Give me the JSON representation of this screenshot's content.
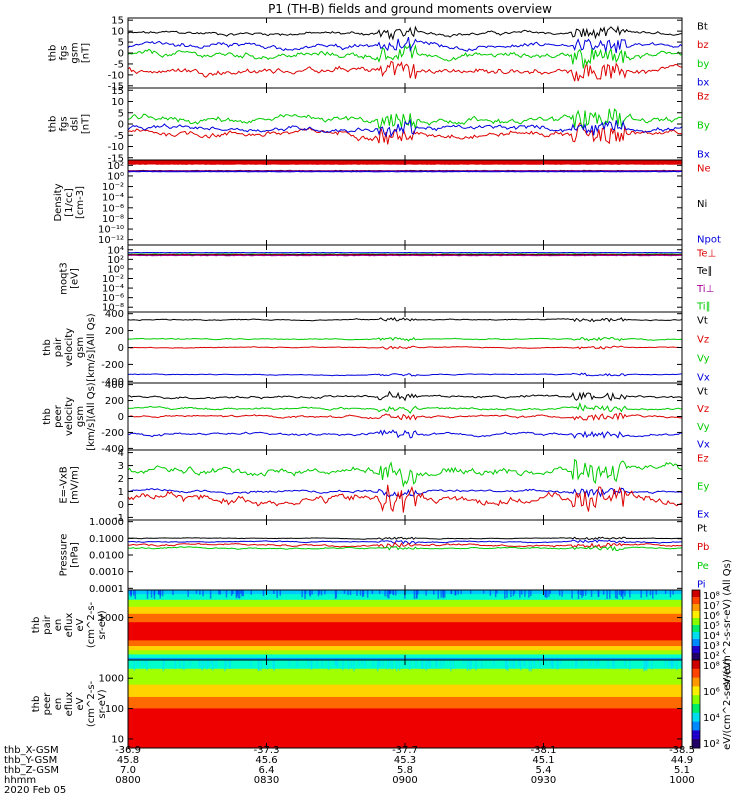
{
  "title": "P1 (TH-B) fields and ground moments overview",
  "panels": [
    {
      "ylabel": [
        "thb",
        "fgs",
        "gsm",
        "[nT]"
      ],
      "ticks": [
        {
          "v": 15,
          "l": "15"
        },
        {
          "v": 10,
          "l": "10"
        },
        {
          "v": 5,
          "l": "5"
        },
        {
          "v": 0,
          "l": "0"
        },
        {
          "v": -5,
          "l": "-5"
        },
        {
          "v": -10,
          "l": "-10"
        },
        {
          "v": -15,
          "l": "-15"
        }
      ],
      "ylim": [
        -16,
        16
      ],
      "legend": [
        {
          "n": "Bt",
          "c": "#000000"
        },
        {
          "n": "bz",
          "c": "#dd0000"
        },
        {
          "n": "by",
          "c": "#00cc00"
        },
        {
          "n": "bx",
          "c": "#0000dd"
        }
      ]
    },
    {
      "ylabel": [
        "thb",
        "fgs",
        "dsl",
        "[nT]"
      ],
      "ticks": [
        {
          "v": 15,
          "l": "15"
        },
        {
          "v": 10,
          "l": "10"
        },
        {
          "v": 5,
          "l": "5"
        },
        {
          "v": 0,
          "l": "0"
        },
        {
          "v": -5,
          "l": "-5"
        },
        {
          "v": -10,
          "l": "-10"
        },
        {
          "v": -15,
          "l": "-15"
        }
      ],
      "ylim": [
        -16,
        16
      ],
      "legend": [
        {
          "n": "Bz",
          "c": "#dd0000"
        },
        {
          "n": "By",
          "c": "#00cc00"
        },
        {
          "n": "Bx",
          "c": "#0000dd"
        }
      ]
    },
    {
      "ylabel": [
        "Density",
        "[1/cc]",
        "[cm-3]"
      ],
      "ticks": [
        {
          "v": 2,
          "l": "10²"
        },
        {
          "v": 0,
          "l": "10⁰"
        },
        {
          "v": -2,
          "l": "10⁻²"
        },
        {
          "v": -4,
          "l": "10⁻⁴"
        },
        {
          "v": -6,
          "l": "10⁻⁶"
        },
        {
          "v": -8,
          "l": "10⁻⁸"
        },
        {
          "v": -10,
          "l": "10⁻¹⁰"
        },
        {
          "v": -12,
          "l": "10⁻¹²"
        }
      ],
      "ylim": [
        -13,
        3
      ],
      "legend": [
        {
          "n": "Ne",
          "c": "#dd0000"
        },
        {
          "n": "Ni",
          "c": "#000000"
        },
        {
          "n": "Npot",
          "c": "#0000dd"
        }
      ]
    },
    {
      "ylabel": [
        "moqt3",
        "[eV]"
      ],
      "ticks": [
        {
          "v": 4,
          "l": "10⁴"
        },
        {
          "v": 2,
          "l": "10²"
        },
        {
          "v": 0,
          "l": "10⁰"
        },
        {
          "v": -2,
          "l": "10⁻²"
        },
        {
          "v": -4,
          "l": "10⁻⁴"
        },
        {
          "v": -6,
          "l": "10⁻⁶"
        },
        {
          "v": -8,
          "l": "10⁻⁸"
        }
      ],
      "ylim": [
        -9,
        5
      ],
      "legend": [
        {
          "n": "Te⊥",
          "c": "#dd0000"
        },
        {
          "n": "Te∥",
          "c": "#000000"
        },
        {
          "n": "Ti⊥",
          "c": "#aa0099"
        },
        {
          "n": "Ti∥",
          "c": "#00cc00"
        }
      ]
    },
    {
      "ylabel": [
        "thb",
        "pair",
        "velocity",
        "gsm",
        "[km/s](All Qs)"
      ],
      "ticks": [
        {
          "v": 400,
          "l": "400"
        },
        {
          "v": 200,
          "l": "200"
        },
        {
          "v": 0,
          "l": "0"
        },
        {
          "v": -200,
          "l": "-200"
        },
        {
          "v": -400,
          "l": "-400"
        }
      ],
      "ylim": [
        -420,
        420
      ],
      "legend": [
        {
          "n": "Vt",
          "c": "#000000"
        },
        {
          "n": "Vz",
          "c": "#dd0000"
        },
        {
          "n": "Vy",
          "c": "#00cc00"
        },
        {
          "n": "Vx",
          "c": "#0000dd"
        }
      ]
    },
    {
      "ylabel": [
        "thb",
        "peer",
        "velocity",
        "gsm",
        "[km/s](All Qs)"
      ],
      "ticks": [
        {
          "v": 400,
          "l": "400"
        },
        {
          "v": 200,
          "l": "200"
        },
        {
          "v": 0,
          "l": "0"
        },
        {
          "v": -200,
          "l": "-200"
        },
        {
          "v": -400,
          "l": "-400"
        }
      ],
      "ylim": [
        -420,
        420
      ],
      "legend": [
        {
          "n": "Vt",
          "c": "#000000"
        },
        {
          "n": "Vz",
          "c": "#dd0000"
        },
        {
          "n": "Vy",
          "c": "#00cc00"
        },
        {
          "n": "Vx",
          "c": "#0000dd"
        }
      ]
    },
    {
      "ylabel": [
        "E=-VxB",
        "[mV/m]"
      ],
      "ticks": [
        {
          "v": 4,
          "l": "4"
        },
        {
          "v": 3,
          "l": "3"
        },
        {
          "v": 2,
          "l": "2"
        },
        {
          "v": 1,
          "l": "1"
        },
        {
          "v": 0,
          "l": "0"
        },
        {
          "v": -1,
          "l": "-1"
        }
      ],
      "ylim": [
        -1.2,
        4.2
      ],
      "legend": [
        {
          "n": "Ez",
          "c": "#dd0000"
        },
        {
          "n": "Ey",
          "c": "#00cc00"
        },
        {
          "n": "Ex",
          "c": "#0000dd"
        }
      ]
    },
    {
      "ylabel": [
        "Pressure",
        "[nPa]"
      ],
      "ticks": [
        {
          "v": 0,
          "l": "1.0000"
        },
        {
          "v": -1,
          "l": "0.1000"
        },
        {
          "v": -2,
          "l": "0.0100"
        },
        {
          "v": -3,
          "l": "0.0010"
        },
        {
          "v": -4,
          "l": "0.0001"
        }
      ],
      "ylim": [
        -4.1,
        0.1
      ],
      "legend": [
        {
          "n": "Pt",
          "c": "#000000"
        },
        {
          "n": "Pb",
          "c": "#dd0000"
        },
        {
          "n": "Pe",
          "c": "#00cc00"
        },
        {
          "n": "Pi",
          "c": "#0000dd"
        }
      ]
    },
    {
      "ylabel": [
        "thb",
        "pair",
        "en",
        "eflux",
        "eV",
        "(cm^2-s-",
        "sr-eV)"
      ],
      "ticks": [
        {
          "v": 3,
          "l": "1000"
        }
      ],
      "ylim": [
        1,
        4.3
      ],
      "cbar": {
        "ticks": [
          "10⁸",
          "10⁷",
          "10⁶",
          "10⁵",
          "10⁴",
          "10³",
          "10²"
        ],
        "label": "eV/(cm^2-s-sr-eV) (All Qs)"
      }
    },
    {
      "ylabel": [
        "thb",
        "peer",
        "en",
        "eflux",
        "eV",
        "(cm^2-s-",
        "sr-eV)"
      ],
      "ticks": [
        {
          "v": 3,
          "l": "1000"
        },
        {
          "v": 2,
          "l": "100"
        },
        {
          "v": 1,
          "l": "10"
        }
      ],
      "ylim": [
        0.7,
        3.6
      ],
      "cbar": {
        "ticks": [
          "10⁸",
          "10⁶",
          "10⁴",
          "10²"
        ],
        "label": "eV/(cm^2-s-sr-eV)"
      }
    }
  ],
  "xaxis": {
    "labels": [
      "thb_X-GSM",
      "thb_Y-GSM",
      "thb_Z-GSM",
      "hhmm",
      "2020 Feb 05"
    ],
    "ticks": [
      {
        "x": "-36.9",
        "y": "45.8",
        "z": "7.0",
        "t": "0800"
      },
      {
        "x": "-37.3",
        "y": "45.6",
        "z": "6.4",
        "t": "0830"
      },
      {
        "x": "-37.7",
        "y": "45.3",
        "z": "5.8",
        "t": "0900"
      },
      {
        "x": "-38.1",
        "y": "45.1",
        "z": "5.4",
        "t": "0930"
      },
      {
        "x": "-38.5",
        "y": "44.9",
        "z": "5.1",
        "t": "1000"
      }
    ]
  },
  "chart_data": {
    "type": "line",
    "title": "P1 (TH-B) fields and ground moments overview",
    "xlabel": "hhmm",
    "x": [
      "0800",
      "0830",
      "0900",
      "0930",
      "1000"
    ],
    "series": [
      {
        "name": "Bt",
        "approx_level": 9
      },
      {
        "name": "bz",
        "approx_level": -8
      },
      {
        "name": "by",
        "approx_level": -1
      },
      {
        "name": "bx",
        "approx_level": 3
      },
      {
        "name": "Vt (pair)",
        "approx_level": 330
      },
      {
        "name": "Vz (pair)",
        "approx_level": 0
      },
      {
        "name": "Vy (pair)",
        "approx_level": 100
      },
      {
        "name": "Vx (pair)",
        "approx_level": -320
      },
      {
        "name": "Vt (peer)",
        "approx_level": 250
      },
      {
        "name": "Vz (peer)",
        "approx_level": 0
      },
      {
        "name": "Vy (peer)",
        "approx_level": 100
      },
      {
        "name": "Vx (peer)",
        "approx_level": -220
      },
      {
        "name": "Ez",
        "approx_level": 0.5
      },
      {
        "name": "Ey",
        "approx_level": 2.5
      },
      {
        "name": "Ex",
        "approx_level": 1.0
      },
      {
        "name": "Pt",
        "approx_level": 0.1
      },
      {
        "name": "Pb",
        "approx_level": 0.04
      },
      {
        "name": "Pe",
        "approx_level": 0.03
      },
      {
        "name": "Pi",
        "approx_level": 0.06
      }
    ]
  }
}
